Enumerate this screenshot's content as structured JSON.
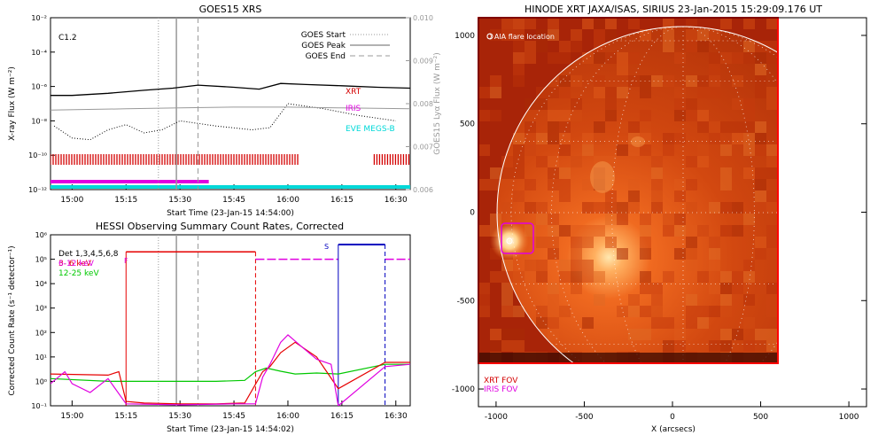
{
  "colors": {
    "xrt": "#d40000",
    "iris": "#e000e0",
    "eve": "#00d8d8",
    "hessi_hi": "#e60000",
    "hessi_mid": "#e000e0",
    "hessi_low": "#00c800",
    "flag": "#0000c0",
    "goes_axis": "#999999"
  },
  "chart_data": [
    {
      "type": "line",
      "title": "GOES15 XRS",
      "xlabel": "Start Time (23-Jan-15 14:54:00)",
      "ylabel": "X-ray Flux (W m⁻²)",
      "y2label": "GOES15 Lyα Flux (W m⁻²)",
      "flare_class": "C1.2",
      "x_ticks": [
        "15:00",
        "15:15",
        "15:30",
        "15:45",
        "16:00",
        "16:15",
        "16:30"
      ],
      "y_ticks": [
        "10⁻²",
        "10⁻⁴",
        "10⁻⁶",
        "10⁻⁸",
        "10⁻¹⁰",
        "10⁻¹²"
      ],
      "y2_ticks": [
        "0.010",
        "0.009",
        "0.008",
        "0.007",
        "0.006"
      ],
      "xlim": [
        "14:54",
        "16:34"
      ],
      "ylim": [
        1e-12,
        0.01
      ],
      "y2lim": [
        0.006,
        0.01
      ],
      "y_scale": "log",
      "legend": [
        {
          "label": "GOES Start",
          "style": "dotted"
        },
        {
          "label": "GOES Peak",
          "style": "solid"
        },
        {
          "label": "GOES End",
          "style": "dashed"
        }
      ],
      "legend_position": "top-right",
      "markers": {
        "start": "15:24",
        "peak": "15:29",
        "end": "15:35"
      },
      "instrument_labels": [
        "XRT",
        "IRIS",
        "EVE MEGS-B"
      ],
      "series": [
        {
          "name": "GOES long",
          "x": [
            "14:54",
            "15:00",
            "15:10",
            "15:20",
            "15:28",
            "15:35",
            "15:45",
            "15:52",
            "15:58",
            "16:05",
            "16:15",
            "16:25",
            "16:34"
          ],
          "values": [
            3e-07,
            3e-07,
            4e-07,
            6e-07,
            8e-07,
            1.2e-06,
            9e-07,
            7e-07,
            1.5e-06,
            1.3e-06,
            1.1e-06,
            9e-07,
            8e-07
          ]
        },
        {
          "name": "GOES short",
          "x": [
            "14:55",
            "15:00",
            "15:05",
            "15:10",
            "15:15",
            "15:20",
            "15:25",
            "15:30",
            "15:40",
            "15:50",
            "15:55",
            "16:00",
            "16:10",
            "16:20",
            "16:30"
          ],
          "values": [
            5e-09,
            1e-09,
            8e-10,
            3e-09,
            6e-09,
            2e-09,
            3e-09,
            1e-08,
            5e-09,
            3e-09,
            4e-09,
            1e-07,
            5e-08,
            2e-08,
            1e-08
          ]
        },
        {
          "name": "GOES Lyα",
          "x": [
            "14:54",
            "15:15",
            "15:30",
            "15:45",
            "16:00",
            "16:15",
            "16:34"
          ],
          "values": [
            0.00785,
            0.00788,
            0.0079,
            0.00792,
            0.00792,
            0.0079,
            0.00788
          ]
        }
      ],
      "coverage": [
        {
          "name": "XRT",
          "ranges": [
            [
              "14:54",
              "16:03"
            ],
            [
              "16:24",
              "16:34"
            ]
          ]
        },
        {
          "name": "IRIS",
          "ranges": [
            [
              "14:54",
              "15:38"
            ]
          ]
        },
        {
          "name": "EVE MEGS-B",
          "ranges": [
            [
              "14:54",
              "16:34"
            ]
          ]
        }
      ]
    },
    {
      "type": "line",
      "title": "HESSI Observing Summary Count Rates, Corrected",
      "xlabel": "Start Time (23-Jan-15 14:54:02)",
      "ylabel": "Corrected Count Rate (s⁻¹ detector⁻¹)",
      "x_ticks": [
        "15:00",
        "15:15",
        "15:30",
        "15:45",
        "16:00",
        "16:15",
        "16:30"
      ],
      "y_ticks": [
        "10⁶",
        "10⁵",
        "10⁴",
        "10³",
        "10²",
        "10¹",
        "10⁰",
        "10⁻¹"
      ],
      "xlim": [
        "14:54",
        "16:34"
      ],
      "ylim": [
        0.1,
        1000000.0
      ],
      "y_scale": "log",
      "legend_note": "Det 1,3,4,5,6,8",
      "legend": [
        "3- 6 keV",
        "6-12 keV",
        "12-25 keV"
      ],
      "legend_position": "top-left",
      "flag_labels": [
        "F",
        "S"
      ],
      "series": [
        {
          "name": "3- 6 keV",
          "x": [
            "14:54",
            "15:10",
            "15:13",
            "15:15",
            "15:20",
            "15:30",
            "15:40",
            "15:48",
            "15:53",
            "15:55",
            "15:58",
            "16:02",
            "16:08",
            "16:14",
            "16:27",
            "16:34"
          ],
          "values": [
            2.0,
            1.8,
            2.5,
            0.15,
            0.13,
            0.12,
            0.12,
            0.13,
            2.5,
            4,
            15,
            40,
            10,
            0.5,
            6,
            6
          ]
        },
        {
          "name": "6-12 keV",
          "x": [
            "14:54",
            "14:58",
            "15:00",
            "15:05",
            "15:10",
            "15:15",
            "15:30",
            "15:45",
            "15:51",
            "15:53",
            "15:55",
            "15:58",
            "16:00",
            "16:04",
            "16:08",
            "16:12",
            "16:14",
            "16:27",
            "16:34"
          ],
          "values": [
            0.8,
            2.5,
            0.8,
            0.35,
            1.3,
            0.12,
            0.11,
            0.12,
            0.12,
            1.5,
            5,
            40,
            80,
            25,
            8,
            5,
            0.1,
            4,
            5
          ]
        },
        {
          "name": "12-25 keV",
          "x": [
            "14:54",
            "15:10",
            "15:20",
            "15:30",
            "15:40",
            "15:48",
            "15:51",
            "15:54",
            "15:58",
            "16:02",
            "16:08",
            "16:14",
            "16:27",
            "16:34"
          ],
          "values": [
            1.3,
            1.0,
            1.0,
            1.0,
            1.0,
            1.1,
            2.5,
            3.5,
            2.6,
            2.0,
            2.2,
            2.0,
            5,
            5
          ]
        }
      ],
      "attenuator": [
        {
          "range": [
            "15:15",
            "15:51"
          ],
          "value": 200000.0,
          "color": "red"
        },
        {
          "range": [
            "15:51",
            "16:14"
          ],
          "value": 100000.0,
          "color": "magenta"
        },
        {
          "range": [
            "16:27",
            "16:34"
          ],
          "value": 100000.0,
          "color": "magenta"
        }
      ],
      "saa": {
        "range": [
          "16:14",
          "16:27"
        ],
        "value": 400000.0
      }
    },
    {
      "type": "heatmap",
      "title": "HINODE XRT JAXA/ISAS, SIRIUS 23-Jan-2015 15:29:09.176 UT",
      "xlabel": "X (arcsecs)",
      "ylabel": "Y (arcsecs)",
      "x_ticks": [
        "-1000",
        "-500",
        "0",
        "500",
        "1000"
      ],
      "y_ticks": [
        "1000",
        "500",
        "0",
        "-500",
        "-1000"
      ],
      "xlim": [
        -1100,
        1100
      ],
      "ylim": [
        -1100,
        1100
      ],
      "legend": [
        "O AIA flare location"
      ],
      "fov_labels": [
        "XRT FOV",
        "IRIS FOV"
      ],
      "flare_location": [
        -900,
        -150
      ],
      "xrt_fov": {
        "x": [
          -1100,
          600
        ],
        "y": [
          -850,
          1100
        ]
      },
      "iris_fov": {
        "x": [
          -980,
          -800
        ],
        "y": [
          -250,
          -80
        ]
      }
    }
  ]
}
